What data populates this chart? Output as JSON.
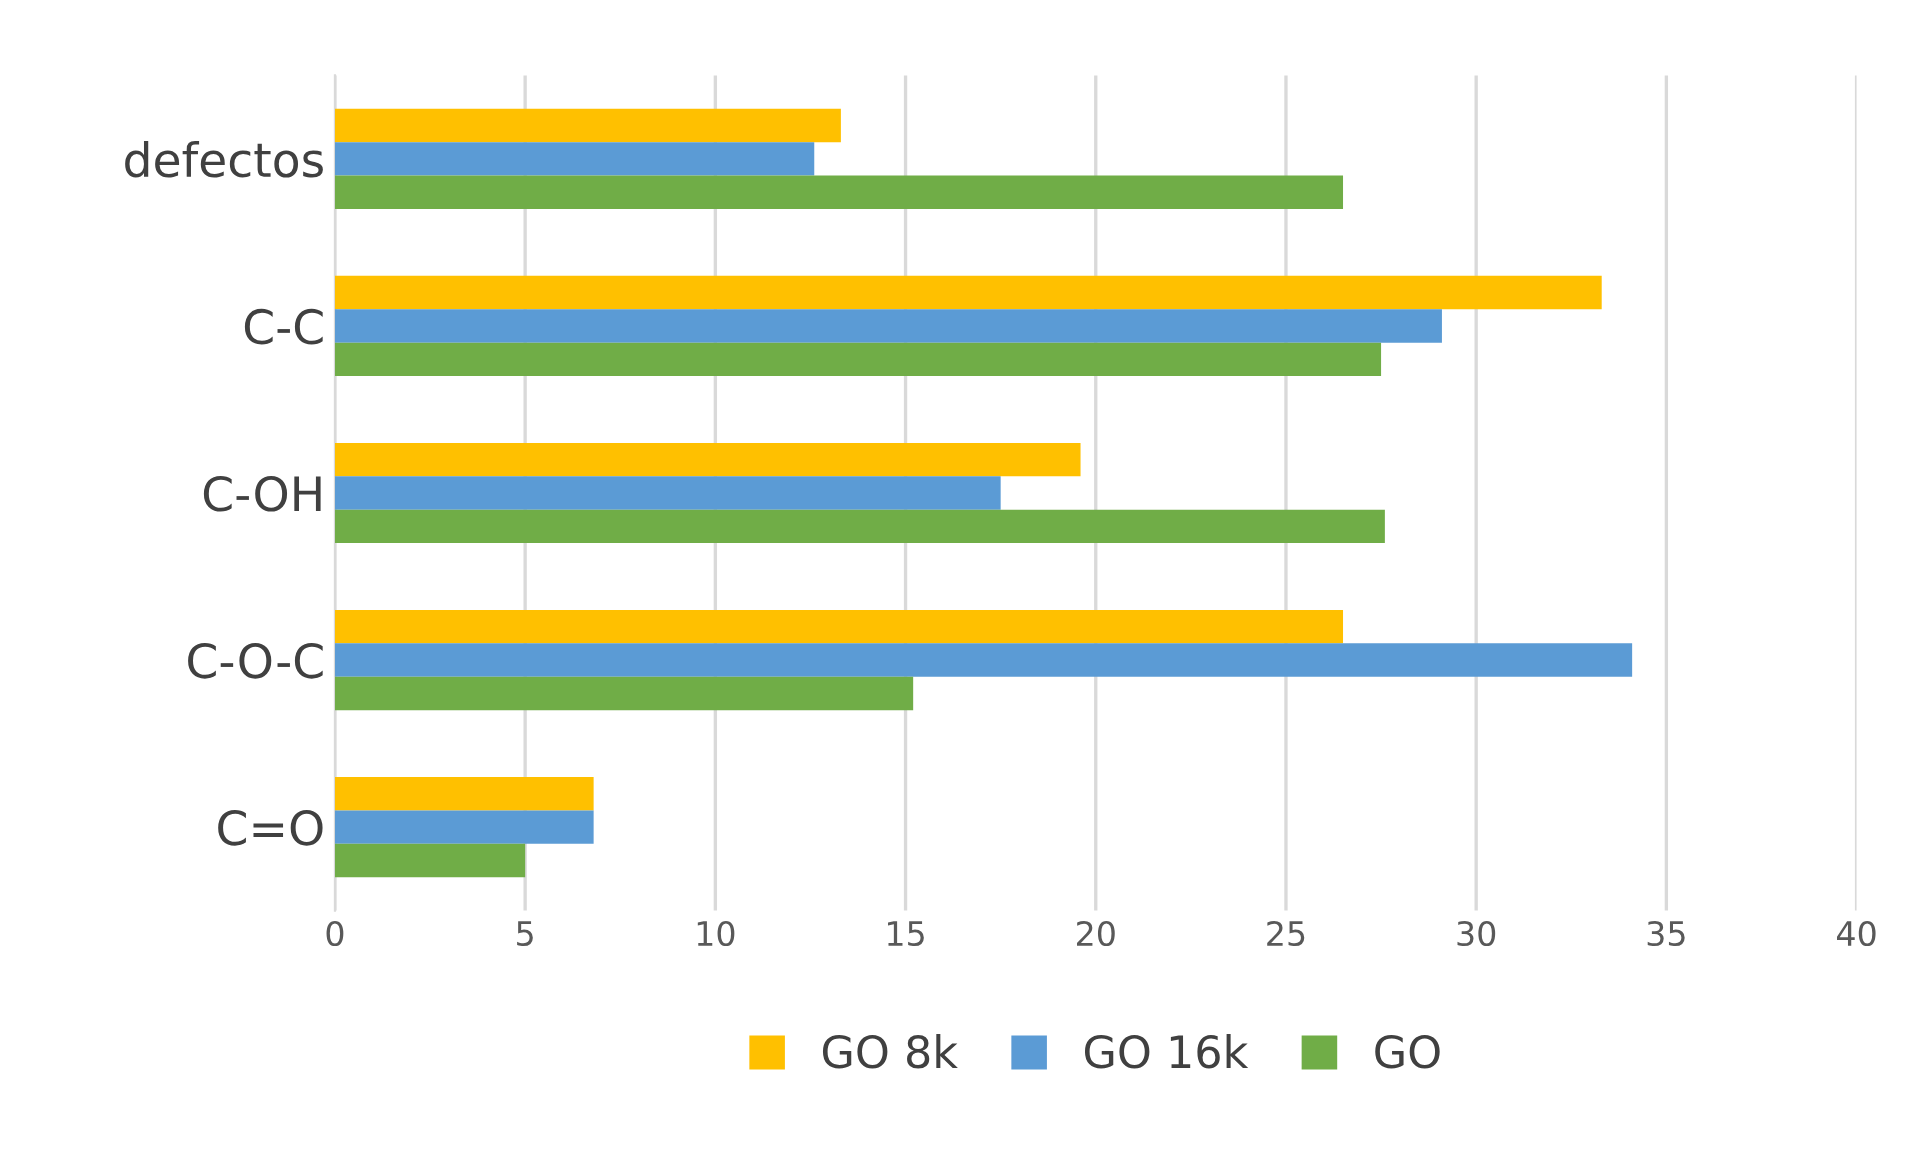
{
  "chart_data": {
    "type": "bar",
    "orientation": "horizontal",
    "categories": [
      "defectos",
      "C-C",
      "C-OH",
      "C-O-C",
      "C=O"
    ],
    "series": [
      {
        "name": "GO 8k",
        "color": "#ffc000",
        "values": [
          13.3,
          33.3,
          19.6,
          26.5,
          6.8
        ]
      },
      {
        "name": "GO 16k",
        "color": "#5b9bd5",
        "values": [
          12.6,
          29.1,
          17.5,
          34.1,
          6.8
        ]
      },
      {
        "name": "GO",
        "color": "#70ad47",
        "values": [
          26.5,
          27.5,
          27.6,
          15.2,
          5.0
        ]
      }
    ],
    "xlim": [
      0,
      40
    ],
    "xticks": [
      0,
      5,
      10,
      15,
      20,
      25,
      30,
      35,
      40
    ],
    "grid": "x",
    "legend": "bottom"
  }
}
